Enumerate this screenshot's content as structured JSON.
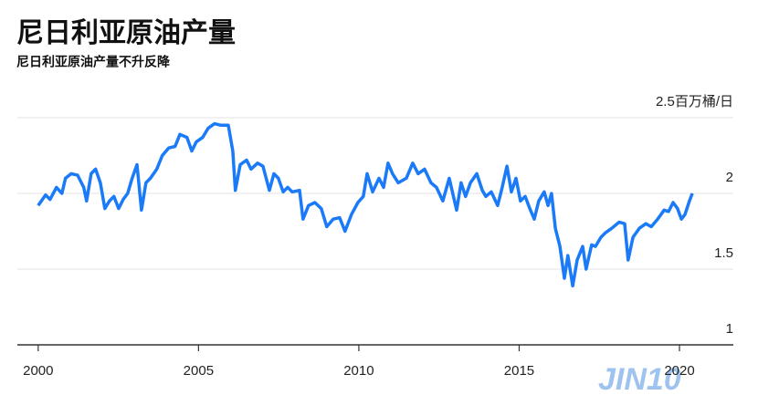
{
  "chart_data": {
    "type": "line",
    "title": "尼日利亚原油产量",
    "subtitle": "尼日利亚原油产量不升反降",
    "watermark": "JIN10",
    "xlim": [
      1999.35,
      2021.68
    ],
    "xticks": [
      2000,
      2005,
      2010,
      2015,
      2020
    ],
    "ylim": [
      1.0,
      2.5
    ],
    "yticks": [
      1.0,
      1.5,
      2.0,
      {
        "value": 2.5,
        "label": "2.5百万桶/日"
      }
    ],
    "grid": true,
    "series": [
      {
        "color": "#1a7af8",
        "x": [
          2000.0,
          2000.23,
          2000.37,
          2000.57,
          2000.74,
          2000.85,
          2001.03,
          2001.23,
          2001.42,
          2001.51,
          2001.65,
          2001.79,
          2001.94,
          2002.08,
          2002.22,
          2002.36,
          2002.51,
          2002.65,
          2002.79,
          2002.93,
          2003.08,
          2003.22,
          2003.36,
          2003.5,
          2003.7,
          2003.87,
          2004.07,
          2004.27,
          2004.42,
          2004.64,
          2004.79,
          2004.93,
          2005.13,
          2005.3,
          2005.5,
          2005.7,
          2005.93,
          2006.07,
          2006.15,
          2006.3,
          2006.5,
          2006.64,
          2006.84,
          2007.01,
          2007.21,
          2007.35,
          2007.49,
          2007.64,
          2007.78,
          2007.92,
          2008.15,
          2008.26,
          2008.43,
          2008.63,
          2008.83,
          2009.0,
          2009.2,
          2009.4,
          2009.57,
          2009.77,
          2009.97,
          2010.14,
          2010.26,
          2010.43,
          2010.63,
          2010.77,
          2010.91,
          2011.05,
          2011.23,
          2011.48,
          2011.68,
          2011.85,
          2012.05,
          2012.25,
          2012.42,
          2012.62,
          2012.82,
          2013.05,
          2013.19,
          2013.33,
          2013.48,
          2013.68,
          2013.85,
          2013.96,
          2014.13,
          2014.33,
          2014.47,
          2014.62,
          2014.76,
          2014.9,
          2015.04,
          2015.19,
          2015.33,
          2015.47,
          2015.61,
          2015.78,
          2015.9,
          2016.01,
          2016.13,
          2016.27,
          2016.41,
          2016.52,
          2016.67,
          2016.81,
          2016.98,
          2017.09,
          2017.26,
          2017.38,
          2017.55,
          2017.69,
          2017.89,
          2018.12,
          2018.29,
          2018.4,
          2018.55,
          2018.75,
          2018.95,
          2019.12,
          2019.32,
          2019.52,
          2019.66,
          2019.8,
          2019.94,
          2020.06,
          2020.17,
          2020.31,
          2020.4
        ],
        "values": [
          1.92,
          1.99,
          1.96,
          2.04,
          2.0,
          2.1,
          2.13,
          2.12,
          2.04,
          1.95,
          2.13,
          2.16,
          2.07,
          1.9,
          1.95,
          1.98,
          1.9,
          1.96,
          2.0,
          2.1,
          2.19,
          1.89,
          2.07,
          2.1,
          2.16,
          2.25,
          2.3,
          2.31,
          2.39,
          2.37,
          2.28,
          2.34,
          2.37,
          2.43,
          2.46,
          2.45,
          2.45,
          2.28,
          2.02,
          2.19,
          2.22,
          2.16,
          2.2,
          2.18,
          2.02,
          2.13,
          2.1,
          2.01,
          2.04,
          2.01,
          2.02,
          1.83,
          1.92,
          1.94,
          1.9,
          1.78,
          1.83,
          1.84,
          1.75,
          1.86,
          1.94,
          1.98,
          2.13,
          2.01,
          2.1,
          2.04,
          2.2,
          2.13,
          2.07,
          2.1,
          2.2,
          2.13,
          2.16,
          2.07,
          2.04,
          1.95,
          2.1,
          1.89,
          2.07,
          1.98,
          2.07,
          2.13,
          2.02,
          1.98,
          2.01,
          1.92,
          2.04,
          2.18,
          2.01,
          2.1,
          1.95,
          1.98,
          1.9,
          1.83,
          1.95,
          2.01,
          1.92,
          2.0,
          1.77,
          1.65,
          1.44,
          1.59,
          1.39,
          1.56,
          1.65,
          1.5,
          1.66,
          1.65,
          1.71,
          1.74,
          1.77,
          1.81,
          1.8,
          1.56,
          1.71,
          1.77,
          1.8,
          1.78,
          1.83,
          1.89,
          1.88,
          1.94,
          1.9,
          1.83,
          1.86,
          1.95,
          2.0
        ]
      }
    ]
  }
}
